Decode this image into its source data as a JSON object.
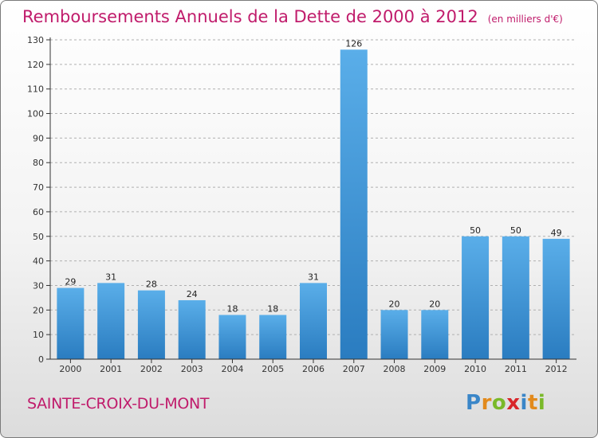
{
  "title": "Remboursements Annuels de la Dette de 2000 à 2012",
  "unit_note": "(en milliers d'€)",
  "commune": "SAINTE-CROIX-DU-MONT",
  "brand": {
    "letters": [
      "P",
      "r",
      "o",
      "x",
      "i",
      "t",
      "i"
    ],
    "colors": [
      "#3a86c8",
      "#e28a1c",
      "#7ab929",
      "#d8262a",
      "#3a86c8",
      "#e28a1c",
      "#7ab929"
    ]
  },
  "colors": {
    "bar_light": "#5aaee9",
    "bar_dark": "#2a7cc0",
    "title": "#c01b6b",
    "axis": "#333333",
    "grid": "#b0b0b0"
  },
  "chart_data": {
    "type": "bar",
    "categories": [
      "2000",
      "2001",
      "2002",
      "2003",
      "2004",
      "2005",
      "2006",
      "2007",
      "2008",
      "2009",
      "2010",
      "2011",
      "2012"
    ],
    "values": [
      29,
      31,
      28,
      24,
      18,
      18,
      31,
      126,
      20,
      20,
      50,
      50,
      49
    ],
    "data_labels": [
      "29",
      "31",
      "28",
      "24",
      "18",
      "18",
      "31",
      "126",
      "20",
      "20",
      "50",
      "50",
      "49"
    ],
    "ylim": [
      0,
      130
    ],
    "yticks": [
      0,
      10,
      20,
      30,
      40,
      50,
      60,
      70,
      80,
      90,
      100,
      110,
      120,
      130
    ],
    "ytick_labels": [
      "0",
      "10",
      "20",
      "30",
      "40",
      "50",
      "60",
      "70",
      "80",
      "90",
      "100",
      "110",
      "120",
      "130"
    ],
    "title": "Remboursements Annuels de la Dette de 2000 à 2012",
    "xlabel": "",
    "ylabel": "",
    "grid": "horizontal dashed",
    "legend": "none"
  }
}
